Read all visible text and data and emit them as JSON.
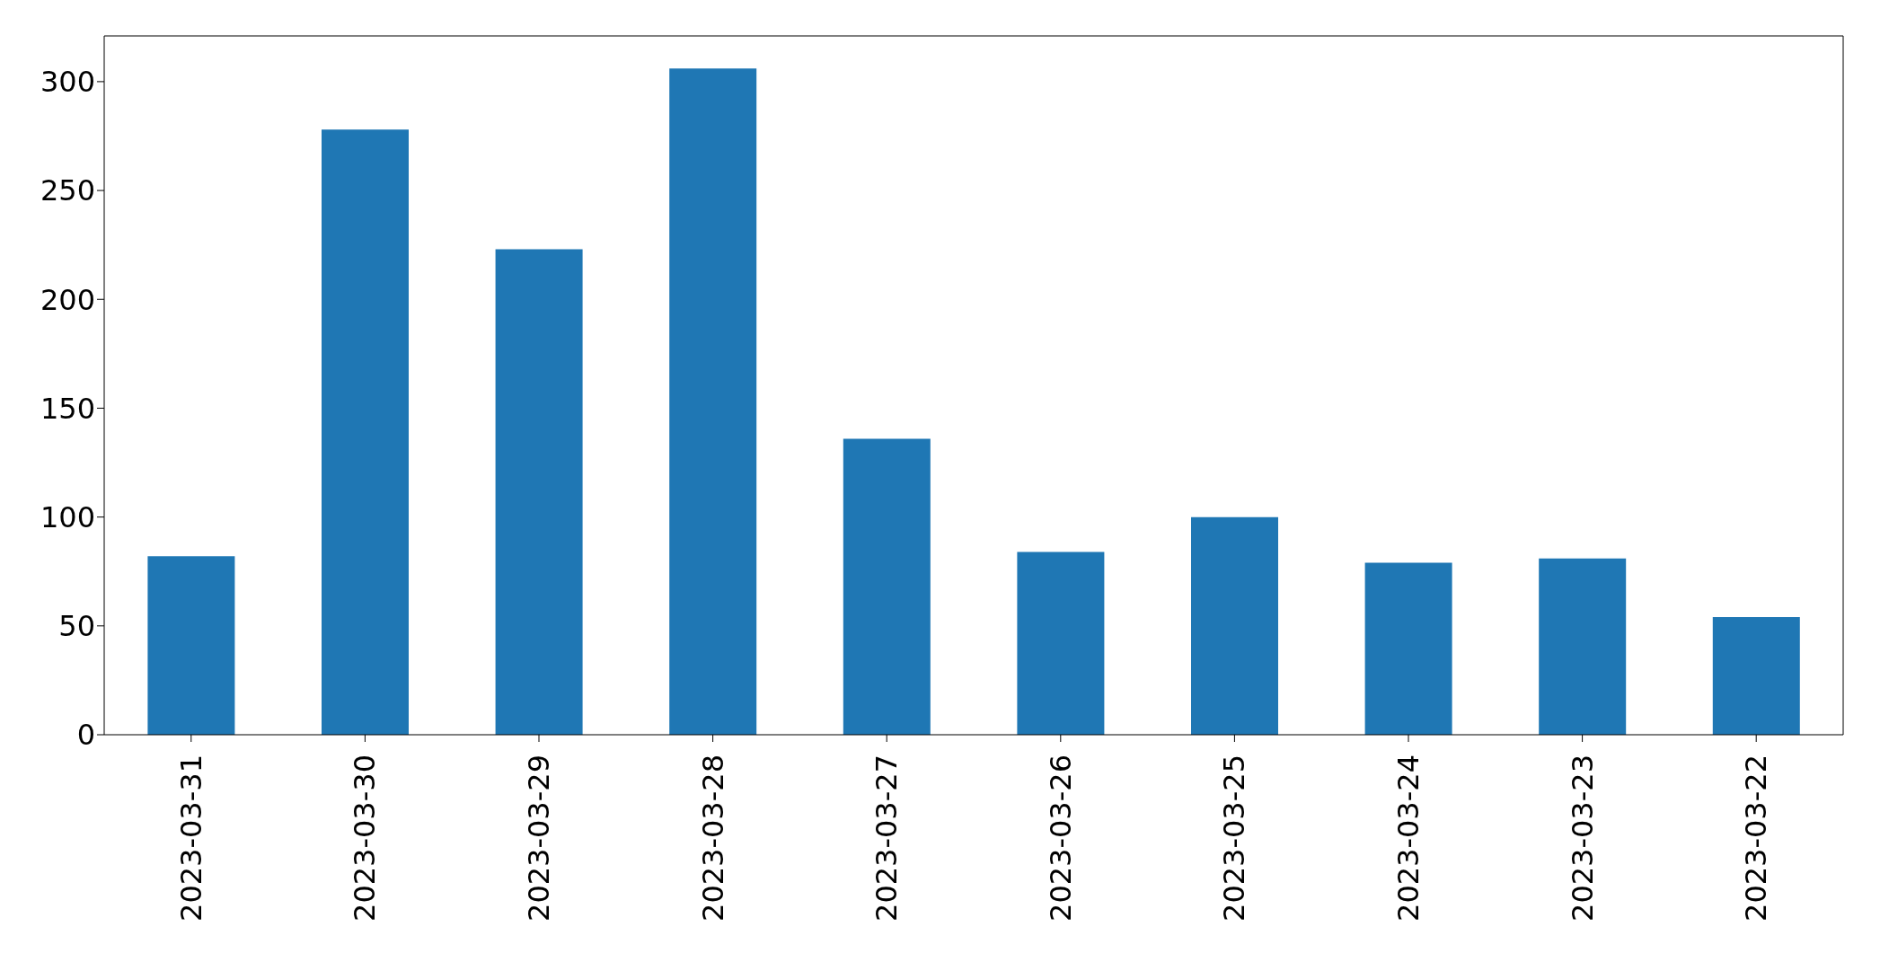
{
  "chart_data": {
    "type": "bar",
    "categories": [
      "2023-03-31",
      "2023-03-30",
      "2023-03-29",
      "2023-03-28",
      "2023-03-27",
      "2023-03-26",
      "2023-03-25",
      "2023-03-24",
      "2023-03-23",
      "2023-03-22"
    ],
    "values": [
      82,
      278,
      223,
      306,
      136,
      84,
      100,
      79,
      81,
      54
    ],
    "color": "#1f77b4",
    "ylim": [
      0,
      321
    ],
    "yticks": [
      0,
      50,
      100,
      150,
      200,
      250,
      300
    ],
    "grid": false,
    "legend": false
  }
}
